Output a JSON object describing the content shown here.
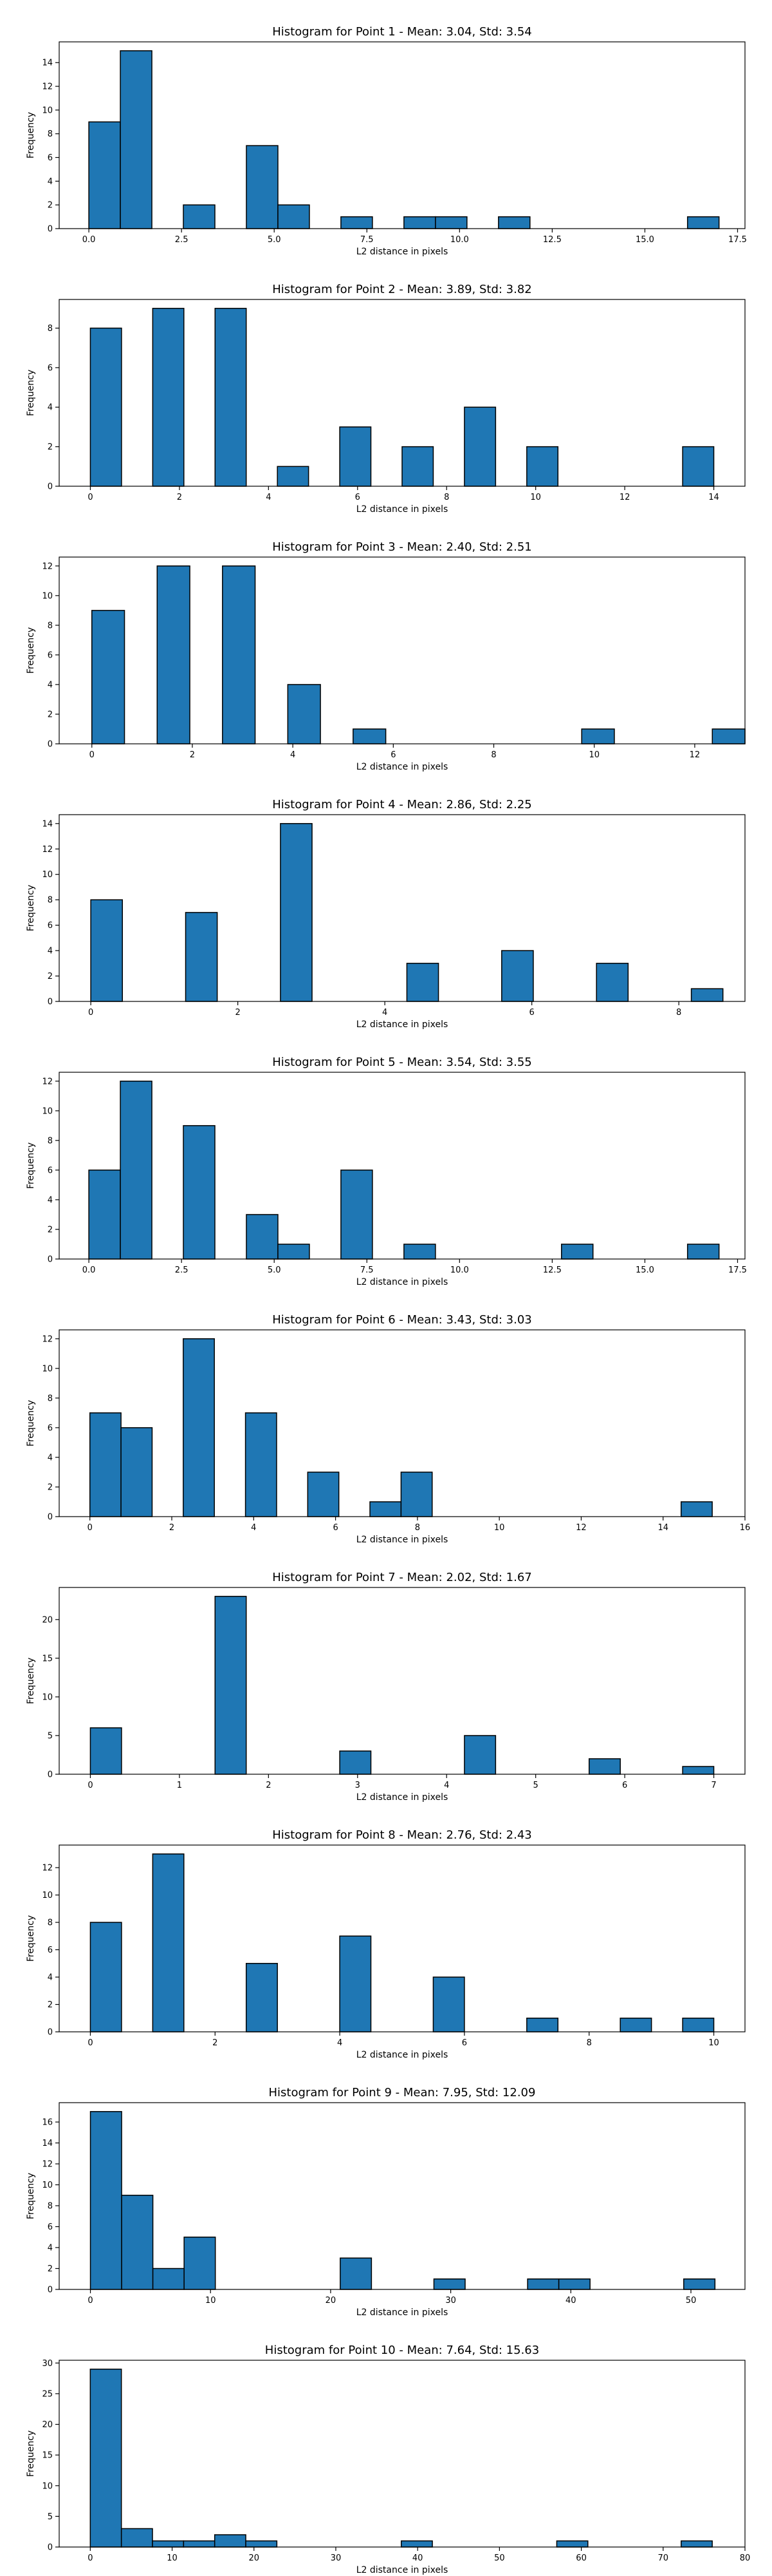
{
  "chart_data": [
    {
      "type": "bar",
      "title": "Histogram for Point 1 - Mean: 3.04, Std: 3.54",
      "xlabel": "L2 distance in pixels",
      "ylabel": "Frequency",
      "xlim": [
        -0.8,
        17.7
      ],
      "ylim": [
        0,
        15.75
      ],
      "xticks": [
        {
          "v": 0,
          "label": "0.0"
        },
        {
          "v": 2.5,
          "label": "2.5"
        },
        {
          "v": 5,
          "label": "5.0"
        },
        {
          "v": 7.5,
          "label": "7.5"
        },
        {
          "v": 10,
          "label": "10.0"
        },
        {
          "v": 12.5,
          "label": "12.5"
        },
        {
          "v": 15,
          "label": "15.0"
        },
        {
          "v": 17.5,
          "label": "17.5"
        }
      ],
      "yticks": [
        0,
        2,
        4,
        6,
        8,
        10,
        12,
        14
      ],
      "bars": [
        {
          "x0": 0.0,
          "x1": 0.85,
          "count": 9
        },
        {
          "x0": 0.85,
          "x1": 1.7,
          "count": 15
        },
        {
          "x0": 2.55,
          "x1": 3.4,
          "count": 2
        },
        {
          "x0": 4.25,
          "x1": 5.1,
          "count": 7
        },
        {
          "x0": 5.1,
          "x1": 5.95,
          "count": 2
        },
        {
          "x0": 6.8,
          "x1": 7.65,
          "count": 1
        },
        {
          "x0": 8.5,
          "x1": 9.35,
          "count": 1
        },
        {
          "x0": 9.35,
          "x1": 10.2,
          "count": 1
        },
        {
          "x0": 11.05,
          "x1": 11.9,
          "count": 1
        },
        {
          "x0": 16.15,
          "x1": 17.0,
          "count": 1
        }
      ]
    },
    {
      "type": "bar",
      "title": "Histogram for Point 2 - Mean: 3.89, Std: 3.82",
      "xlabel": "L2 distance in pixels",
      "ylabel": "Frequency",
      "xlim": [
        -0.7,
        14.7
      ],
      "ylim": [
        0,
        9.45
      ],
      "xticks": [
        {
          "v": 0,
          "label": "0"
        },
        {
          "v": 2,
          "label": "2"
        },
        {
          "v": 4,
          "label": "4"
        },
        {
          "v": 6,
          "label": "6"
        },
        {
          "v": 8,
          "label": "8"
        },
        {
          "v": 10,
          "label": "10"
        },
        {
          "v": 12,
          "label": "12"
        },
        {
          "v": 14,
          "label": "14"
        }
      ],
      "yticks": [
        0,
        2,
        4,
        6,
        8
      ],
      "bars": [
        {
          "x0": 0.0,
          "x1": 0.7,
          "count": 8
        },
        {
          "x0": 1.4,
          "x1": 2.1,
          "count": 9
        },
        {
          "x0": 2.8,
          "x1": 3.5,
          "count": 9
        },
        {
          "x0": 4.2,
          "x1": 4.9,
          "count": 1
        },
        {
          "x0": 5.6,
          "x1": 6.3,
          "count": 3
        },
        {
          "x0": 7.0,
          "x1": 7.7,
          "count": 2
        },
        {
          "x0": 8.4,
          "x1": 9.1,
          "count": 4
        },
        {
          "x0": 9.8,
          "x1": 10.5,
          "count": 2
        },
        {
          "x0": 13.3,
          "x1": 14.0,
          "count": 2
        }
      ]
    },
    {
      "type": "bar",
      "title": "Histogram for Point 3 - Mean: 2.40, Std: 2.51",
      "xlabel": "L2 distance in pixels",
      "ylabel": "Frequency",
      "xlim": [
        -0.65,
        13.0
      ],
      "ylim": [
        0,
        12.6
      ],
      "xticks": [
        {
          "v": 0,
          "label": "0"
        },
        {
          "v": 2,
          "label": "2"
        },
        {
          "v": 4,
          "label": "4"
        },
        {
          "v": 6,
          "label": "6"
        },
        {
          "v": 8,
          "label": "8"
        },
        {
          "v": 10,
          "label": "10"
        },
        {
          "v": 12,
          "label": "12"
        }
      ],
      "yticks": [
        0,
        2,
        4,
        6,
        8,
        10,
        12
      ],
      "bars": [
        {
          "x0": 0.0,
          "x1": 0.65,
          "count": 9
        },
        {
          "x0": 1.3,
          "x1": 1.95,
          "count": 12
        },
        {
          "x0": 2.6,
          "x1": 3.25,
          "count": 12
        },
        {
          "x0": 3.9,
          "x1": 4.55,
          "count": 4
        },
        {
          "x0": 5.2,
          "x1": 5.85,
          "count": 1
        },
        {
          "x0": 9.75,
          "x1": 10.4,
          "count": 1
        },
        {
          "x0": 12.35,
          "x1": 13.0,
          "count": 1
        }
      ]
    },
    {
      "type": "bar",
      "title": "Histogram for Point 4 - Mean: 2.86, Std: 2.25",
      "xlabel": "L2 distance in pixels",
      "ylabel": "Frequency",
      "xlim": [
        -0.43,
        8.9
      ],
      "ylim": [
        0,
        14.7
      ],
      "xticks": [
        {
          "v": 0,
          "label": "0"
        },
        {
          "v": 2,
          "label": "2"
        },
        {
          "v": 4,
          "label": "4"
        },
        {
          "v": 6,
          "label": "6"
        },
        {
          "v": 8,
          "label": "8"
        }
      ],
      "yticks": [
        0,
        2,
        4,
        6,
        8,
        10,
        12,
        14
      ],
      "bars": [
        {
          "x0": 0.0,
          "x1": 0.43,
          "count": 8
        },
        {
          "x0": 1.29,
          "x1": 1.72,
          "count": 7
        },
        {
          "x0": 2.58,
          "x1": 3.01,
          "count": 14
        },
        {
          "x0": 4.3,
          "x1": 4.73,
          "count": 3
        },
        {
          "x0": 5.59,
          "x1": 6.02,
          "count": 4
        },
        {
          "x0": 6.88,
          "x1": 7.31,
          "count": 3
        },
        {
          "x0": 8.17,
          "x1": 8.6,
          "count": 1
        }
      ]
    },
    {
      "type": "bar",
      "title": "Histogram for Point 5 - Mean: 3.54, Std: 3.55",
      "xlabel": "L2 distance in pixels",
      "ylabel": "Frequency",
      "xlim": [
        -0.8,
        17.7
      ],
      "ylim": [
        0,
        12.6
      ],
      "xticks": [
        {
          "v": 0,
          "label": "0.0"
        },
        {
          "v": 2.5,
          "label": "2.5"
        },
        {
          "v": 5,
          "label": "5.0"
        },
        {
          "v": 7.5,
          "label": "7.5"
        },
        {
          "v": 10,
          "label": "10.0"
        },
        {
          "v": 12.5,
          "label": "12.5"
        },
        {
          "v": 15,
          "label": "15.0"
        },
        {
          "v": 17.5,
          "label": "17.5"
        }
      ],
      "yticks": [
        0,
        2,
        4,
        6,
        8,
        10,
        12
      ],
      "bars": [
        {
          "x0": 0.0,
          "x1": 0.85,
          "count": 6
        },
        {
          "x0": 0.85,
          "x1": 1.7,
          "count": 12
        },
        {
          "x0": 2.55,
          "x1": 3.4,
          "count": 9
        },
        {
          "x0": 4.25,
          "x1": 5.1,
          "count": 3
        },
        {
          "x0": 5.1,
          "x1": 5.95,
          "count": 1
        },
        {
          "x0": 6.8,
          "x1": 7.65,
          "count": 6
        },
        {
          "x0": 8.5,
          "x1": 9.35,
          "count": 1
        },
        {
          "x0": 12.75,
          "x1": 13.6,
          "count": 1
        },
        {
          "x0": 16.15,
          "x1": 17.0,
          "count": 1
        }
      ]
    },
    {
      "type": "bar",
      "title": "Histogram for Point 6 - Mean: 3.43, Std: 3.03",
      "xlabel": "L2 distance in pixels",
      "ylabel": "Frequency",
      "xlim": [
        -0.75,
        16.0
      ],
      "ylim": [
        0,
        12.6
      ],
      "xticks": [
        {
          "v": 0,
          "label": "0"
        },
        {
          "v": 2,
          "label": "2"
        },
        {
          "v": 4,
          "label": "4"
        },
        {
          "v": 6,
          "label": "6"
        },
        {
          "v": 8,
          "label": "8"
        },
        {
          "v": 10,
          "label": "10"
        },
        {
          "v": 12,
          "label": "12"
        },
        {
          "v": 14,
          "label": "14"
        },
        {
          "v": 16,
          "label": "16"
        }
      ],
      "yticks": [
        0,
        2,
        4,
        6,
        8,
        10,
        12
      ],
      "bars": [
        {
          "x0": 0.0,
          "x1": 0.76,
          "count": 7
        },
        {
          "x0": 0.76,
          "x1": 1.52,
          "count": 6
        },
        {
          "x0": 2.28,
          "x1": 3.04,
          "count": 12
        },
        {
          "x0": 3.8,
          "x1": 4.56,
          "count": 7
        },
        {
          "x0": 5.32,
          "x1": 6.08,
          "count": 3
        },
        {
          "x0": 6.84,
          "x1": 7.6,
          "count": 1
        },
        {
          "x0": 7.6,
          "x1": 8.36,
          "count": 3
        },
        {
          "x0": 14.44,
          "x1": 15.2,
          "count": 1
        }
      ]
    },
    {
      "type": "bar",
      "title": "Histogram for Point 7 - Mean: 2.02, Std: 1.67",
      "xlabel": "L2 distance in pixels",
      "ylabel": "Frequency",
      "xlim": [
        -0.35,
        7.35
      ],
      "ylim": [
        0,
        24.15
      ],
      "xticks": [
        {
          "v": 0,
          "label": "0"
        },
        {
          "v": 1,
          "label": "1"
        },
        {
          "v": 2,
          "label": "2"
        },
        {
          "v": 3,
          "label": "3"
        },
        {
          "v": 4,
          "label": "4"
        },
        {
          "v": 5,
          "label": "5"
        },
        {
          "v": 6,
          "label": "6"
        },
        {
          "v": 7,
          "label": "7"
        }
      ],
      "yticks": [
        0,
        5,
        10,
        15,
        20
      ],
      "bars": [
        {
          "x0": 0.0,
          "x1": 0.35,
          "count": 6
        },
        {
          "x0": 1.4,
          "x1": 1.75,
          "count": 23
        },
        {
          "x0": 2.8,
          "x1": 3.15,
          "count": 3
        },
        {
          "x0": 4.2,
          "x1": 4.55,
          "count": 5
        },
        {
          "x0": 5.6,
          "x1": 5.95,
          "count": 2
        },
        {
          "x0": 6.65,
          "x1": 7.0,
          "count": 1
        }
      ]
    },
    {
      "type": "bar",
      "title": "Histogram for Point 8 - Mean: 2.76, Std: 2.43",
      "xlabel": "L2 distance in pixels",
      "ylabel": "Frequency",
      "xlim": [
        -0.5,
        10.5
      ],
      "ylim": [
        0,
        13.65
      ],
      "xticks": [
        {
          "v": 0,
          "label": "0"
        },
        {
          "v": 2,
          "label": "2"
        },
        {
          "v": 4,
          "label": "4"
        },
        {
          "v": 6,
          "label": "6"
        },
        {
          "v": 8,
          "label": "8"
        },
        {
          "v": 10,
          "label": "10"
        }
      ],
      "yticks": [
        0,
        2,
        4,
        6,
        8,
        10,
        12
      ],
      "bars": [
        {
          "x0": 0.0,
          "x1": 0.5,
          "count": 8
        },
        {
          "x0": 1.0,
          "x1": 1.5,
          "count": 13
        },
        {
          "x0": 2.5,
          "x1": 3.0,
          "count": 5
        },
        {
          "x0": 4.0,
          "x1": 4.5,
          "count": 7
        },
        {
          "x0": 5.5,
          "x1": 6.0,
          "count": 4
        },
        {
          "x0": 7.0,
          "x1": 7.5,
          "count": 1
        },
        {
          "x0": 8.5,
          "x1": 9.0,
          "count": 1
        },
        {
          "x0": 9.5,
          "x1": 10.0,
          "count": 1
        }
      ]
    },
    {
      "type": "bar",
      "title": "Histogram for Point 9 - Mean: 7.95, Std: 12.09",
      "xlabel": "L2 distance in pixels",
      "ylabel": "Frequency",
      "xlim": [
        -2.6,
        54.5
      ],
      "ylim": [
        0,
        17.85
      ],
      "xticks": [
        {
          "v": 0,
          "label": "0"
        },
        {
          "v": 10,
          "label": "10"
        },
        {
          "v": 20,
          "label": "20"
        },
        {
          "v": 30,
          "label": "30"
        },
        {
          "v": 40,
          "label": "40"
        },
        {
          "v": 50,
          "label": "50"
        }
      ],
      "yticks": [
        0,
        2,
        4,
        6,
        8,
        10,
        12,
        14,
        16
      ],
      "bars": [
        {
          "x0": 0.0,
          "x1": 2.6,
          "count": 17
        },
        {
          "x0": 2.6,
          "x1": 5.2,
          "count": 9
        },
        {
          "x0": 5.2,
          "x1": 7.8,
          "count": 2
        },
        {
          "x0": 7.8,
          "x1": 10.4,
          "count": 5
        },
        {
          "x0": 20.8,
          "x1": 23.4,
          "count": 3
        },
        {
          "x0": 28.6,
          "x1": 31.2,
          "count": 1
        },
        {
          "x0": 36.4,
          "x1": 39.0,
          "count": 1
        },
        {
          "x0": 39.0,
          "x1": 41.6,
          "count": 1
        },
        {
          "x0": 49.4,
          "x1": 52.0,
          "count": 1
        }
      ]
    },
    {
      "type": "bar",
      "title": "Histogram for Point 10 - Mean: 7.64, Std: 15.63",
      "xlabel": "L2 distance in pixels",
      "ylabel": "Frequency",
      "xlim": [
        -3.8,
        80
      ],
      "ylim": [
        0,
        30.45
      ],
      "xticks": [
        {
          "v": 0,
          "label": "0"
        },
        {
          "v": 10,
          "label": "10"
        },
        {
          "v": 20,
          "label": "20"
        },
        {
          "v": 30,
          "label": "30"
        },
        {
          "v": 40,
          "label": "40"
        },
        {
          "v": 50,
          "label": "50"
        },
        {
          "v": 60,
          "label": "60"
        },
        {
          "v": 70,
          "label": "70"
        },
        {
          "v": 80,
          "label": "80"
        }
      ],
      "yticks": [
        0,
        5,
        10,
        15,
        20,
        25,
        30
      ],
      "bars": [
        {
          "x0": 0.0,
          "x1": 3.8,
          "count": 29
        },
        {
          "x0": 3.8,
          "x1": 7.6,
          "count": 3
        },
        {
          "x0": 7.6,
          "x1": 11.4,
          "count": 1
        },
        {
          "x0": 11.4,
          "x1": 15.2,
          "count": 1
        },
        {
          "x0": 15.2,
          "x1": 19.0,
          "count": 2
        },
        {
          "x0": 19.0,
          "x1": 22.8,
          "count": 1
        },
        {
          "x0": 38.0,
          "x1": 41.8,
          "count": 1
        },
        {
          "x0": 57.0,
          "x1": 60.8,
          "count": 1
        },
        {
          "x0": 72.2,
          "x1": 76.0,
          "count": 1
        }
      ]
    }
  ]
}
